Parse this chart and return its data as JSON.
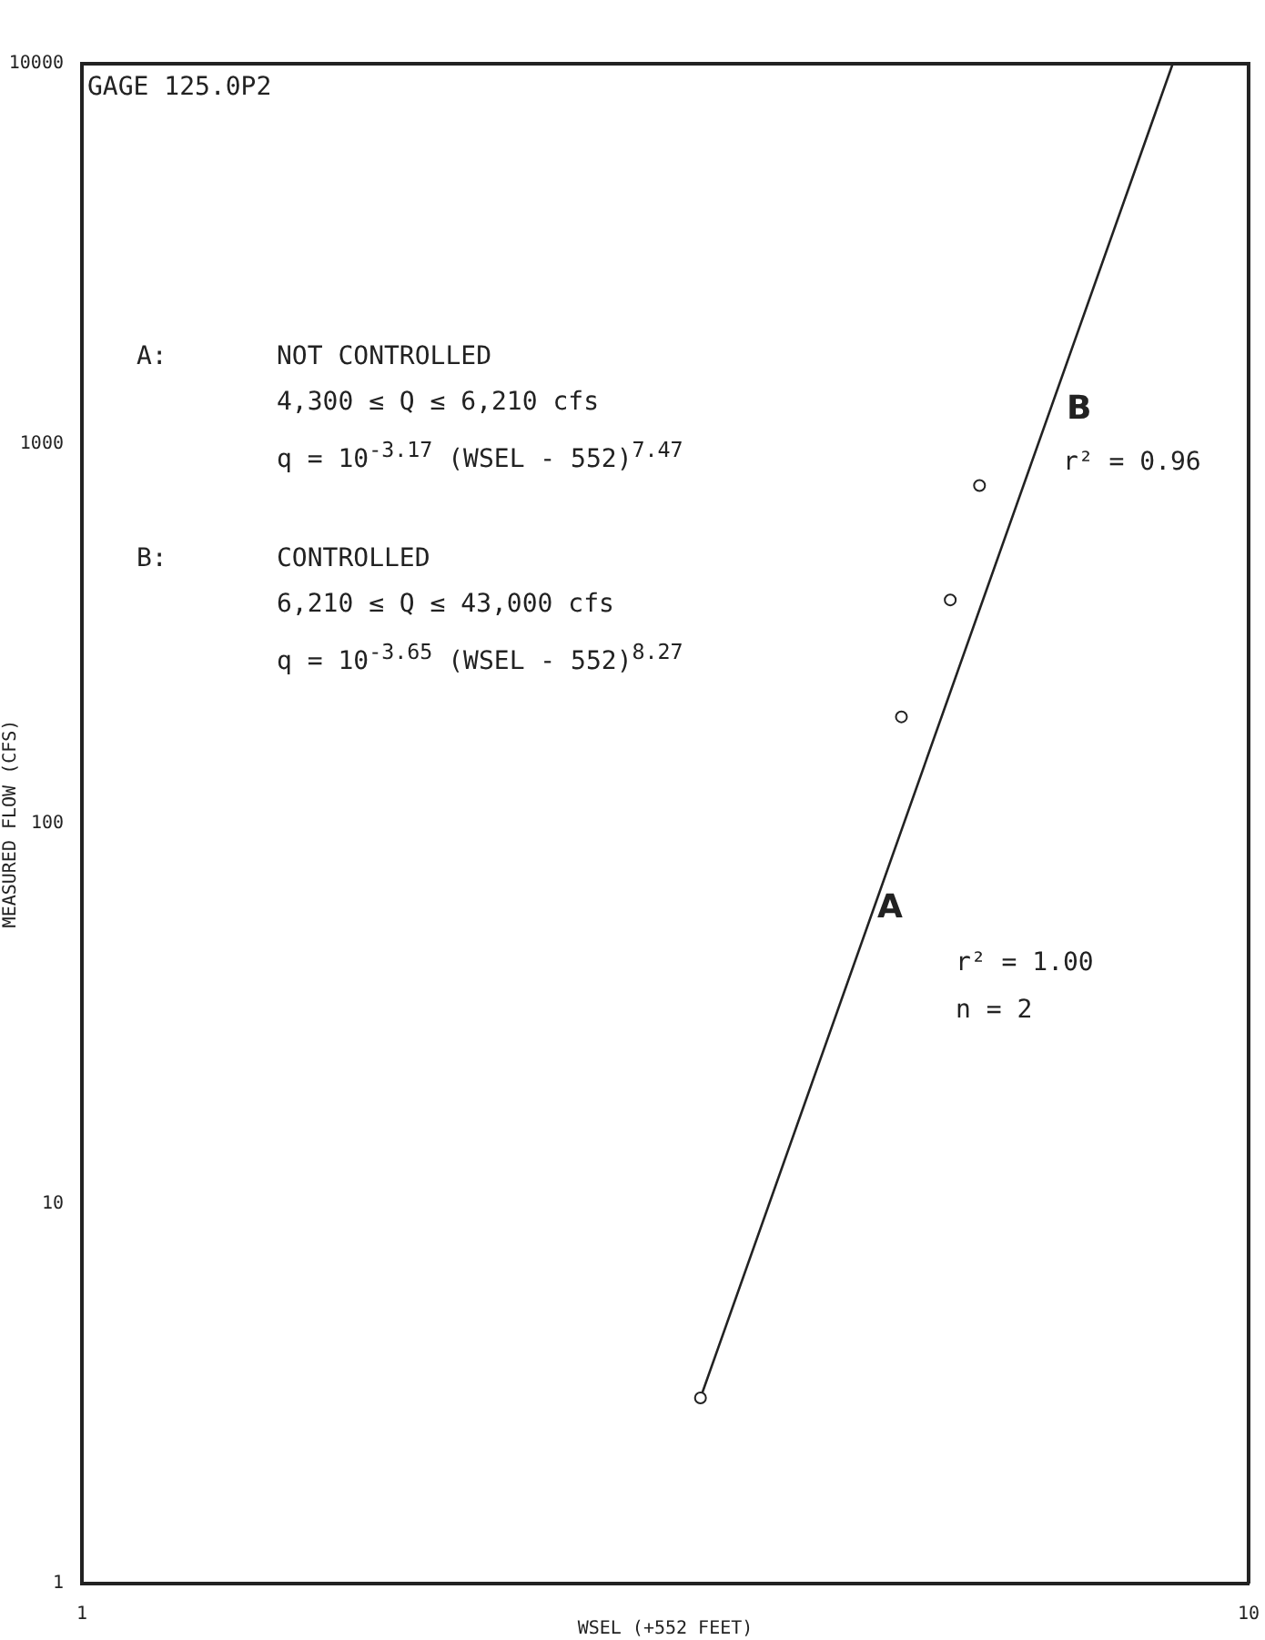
{
  "chart_data": {
    "type": "scatter",
    "xlabel": "WSEL (+552 FEET)",
    "ylabel": "MEASURED FLOW (CFS)",
    "log": "xy",
    "xlim": [
      1,
      10
    ],
    "xticks": [
      1,
      10
    ],
    "ylim": [
      1,
      10000
    ],
    "yticks": [
      1,
      10,
      100,
      1000,
      10000
    ],
    "grid": false,
    "legend": false,
    "marker": "circle",
    "series": [
      {
        "color": "#222222",
        "x": [
          3.39,
          5.04,
          5.55,
          5.88
        ],
        "values": [
          3.08,
          191,
          388,
          776
        ]
      },
      {
        "type": "line",
        "color": "#222222",
        "marker": "none",
        "line_style": "solid",
        "x": [
          3.39,
          8.61
        ],
        "values": [
          3.08,
          10000
        ]
      }
    ],
    "annotations": [
      "GAGE 125.0P2",
      "A:",
      "NOT CONTROLLED",
      "4,300 ≤ Q ≤ 6,210 cfs",
      "q = 10$^{-3.17}$ (WSEL - 552)$^{7.47}$",
      "B:",
      "CONTROLLED",
      "6,210 ≤ Q ≤ 43,000 cfs",
      "q = 10$^{-3.65}$ (WSEL - 552)$^{8.27}$",
      "r² = 0.96",
      "r² = 1.00",
      "n = 2",
      "B",
      "A"
    ]
  }
}
